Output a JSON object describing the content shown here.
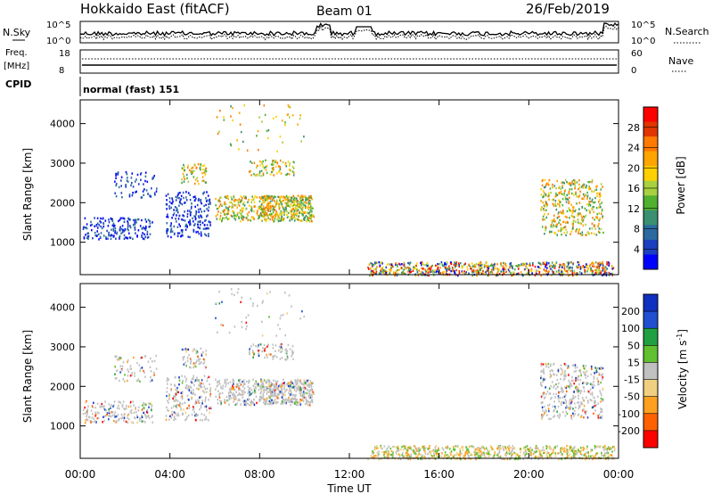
{
  "header": {
    "station": "Hokkaido East (fitACF)",
    "beam": "Beam 01",
    "date": "26/Feb/2019"
  },
  "top_panel": {
    "nsky_label": "N.Sky",
    "nsearch_label": "N.Search",
    "left_ticks": [
      "10^5",
      "10^0"
    ],
    "right_ticks": [
      "10^5",
      "10^0"
    ],
    "freq_label_1": "Freq.",
    "freq_label_2": "[MHz]",
    "freq_ticks": [
      "18",
      "8"
    ],
    "nave_label": "Nave",
    "nave_ticks": [
      "60",
      "0"
    ],
    "cpid_label": "CPID",
    "cpid_value": "normal (fast) 151"
  },
  "chart_data": [
    {
      "type": "heatmap",
      "name": "power-panel",
      "ylabel": "Slant Range [km]",
      "yticks": [
        "4000",
        "3000",
        "2000",
        "1000"
      ],
      "ytick_values": [
        4000,
        3000,
        2000,
        1000
      ],
      "ylim": [
        180,
        4600
      ],
      "xlim": [
        0,
        24
      ],
      "colorbar_label": "Power [dB]",
      "colorbar_ticks": [
        "28",
        "24",
        "20",
        "16",
        "12",
        "8",
        "4"
      ],
      "colorbar_colors": [
        "#ff0000",
        "#e03500",
        "#ff7a00",
        "#ffa500",
        "#ffd000",
        "#a8d040",
        "#50b030",
        "#3a9070",
        "#2a6aa0",
        "#1a40c0",
        "#0000ff"
      ]
    },
    {
      "type": "heatmap",
      "name": "velocity-panel",
      "ylabel": "Slant Range [km]",
      "yticks": [
        "4000",
        "3000",
        "2000",
        "1000"
      ],
      "ytick_values": [
        4000,
        3000,
        2000,
        1000
      ],
      "ylim": [
        180,
        4600
      ],
      "xlim": [
        0,
        24
      ],
      "colorbar_label": "Velocity [m s^-1]",
      "colorbar_ticks": [
        "200",
        "100",
        "50",
        "15",
        "-15",
        "-50",
        "-100",
        "-200"
      ],
      "colorbar_colors": [
        "#1030c0",
        "#2050d0",
        "#20a040",
        "#60c030",
        "#c0c0c0",
        "#f0d080",
        "#ffa020",
        "#ff6000",
        "#ff0000"
      ]
    }
  ],
  "xaxis": {
    "ticks": [
      "00:00",
      "04:00",
      "08:00",
      "12:00",
      "16:00",
      "20:00",
      "00:00"
    ],
    "tick_hours": [
      0,
      4,
      8,
      12,
      16,
      20,
      24
    ],
    "label": "Time UT"
  }
}
